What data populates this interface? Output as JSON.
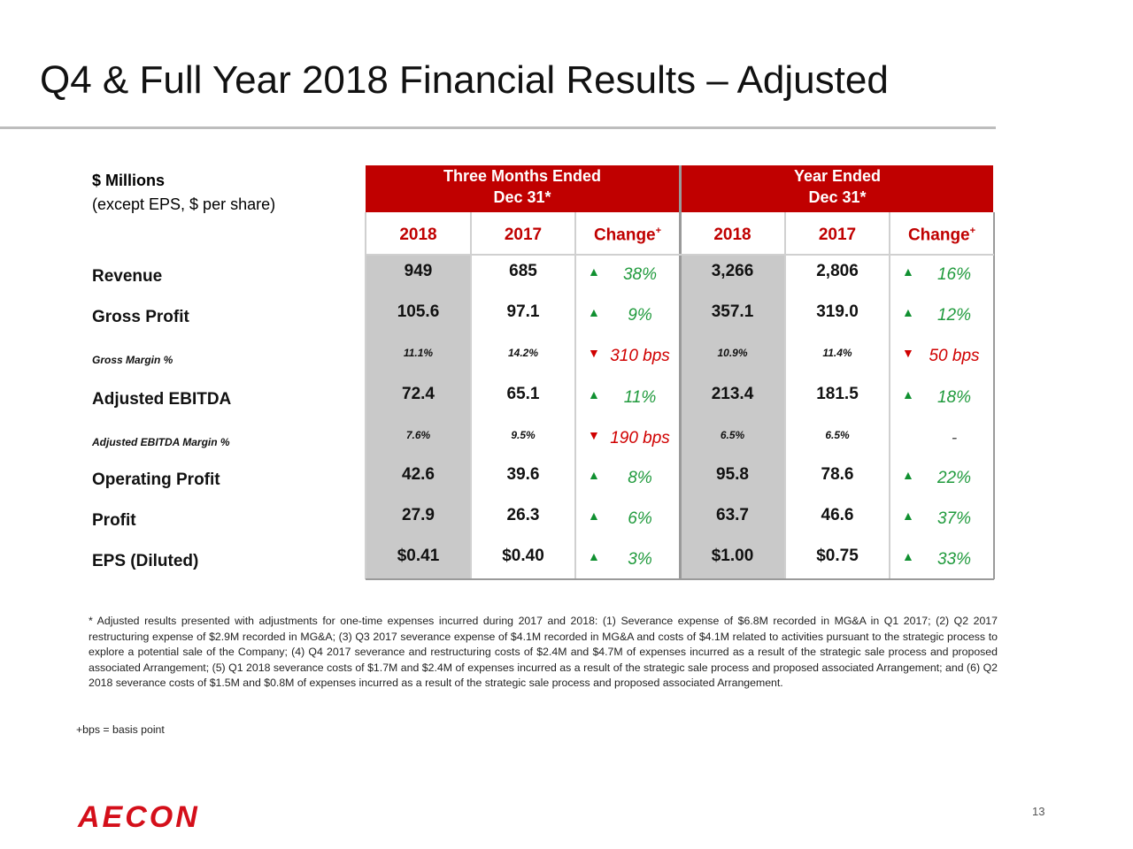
{
  "title": "Q4 & Full Year 2018 Financial Results – Adjusted",
  "table": {
    "units": [
      "$ Millions",
      "(except EPS, $ per share)"
    ],
    "groups": [
      [
        "Three Months Ended",
        "Dec 31*"
      ],
      [
        "Year Ended",
        "Dec 31*"
      ]
    ],
    "columns": [
      "2018",
      "2017",
      "Change",
      "2018",
      "2017",
      "Change"
    ],
    "change_mark": "+",
    "rows": [
      {
        "label": "Revenue",
        "style": "major",
        "values": [
          "949",
          "685",
          "38%",
          "3,266",
          "2,806",
          "16%"
        ],
        "arrows": [
          "up",
          "up"
        ]
      },
      {
        "label": "Gross Profit",
        "style": "major",
        "values": [
          "105.6",
          "97.1",
          "9%",
          "357.1",
          "319.0",
          "12%"
        ],
        "arrows": [
          "up",
          "up"
        ]
      },
      {
        "label": "Gross Margin %",
        "style": "minor",
        "values": [
          "11.1%",
          "14.2%",
          "310 bps",
          "10.9%",
          "11.4%",
          "50 bps"
        ],
        "arrows": [
          "down",
          "down"
        ]
      },
      {
        "label": "Adjusted EBITDA",
        "style": "major",
        "values": [
          "72.4",
          "65.1",
          "11%",
          "213.4",
          "181.5",
          "18%"
        ],
        "arrows": [
          "up",
          "up"
        ]
      },
      {
        "label": "Adjusted EBITDA Margin %",
        "style": "minor",
        "values": [
          "7.6%",
          "9.5%",
          "190 bps",
          "6.5%",
          "6.5%",
          "-"
        ],
        "arrows": [
          "down",
          null
        ]
      },
      {
        "label": "Operating Profit",
        "style": "major",
        "values": [
          "42.6",
          "39.6",
          "8%",
          "95.8",
          "78.6",
          "22%"
        ],
        "arrows": [
          "up",
          "up"
        ]
      },
      {
        "label": "Profit",
        "style": "major",
        "values": [
          "27.9",
          "26.3",
          "6%",
          "63.7",
          "46.6",
          "37%"
        ],
        "arrows": [
          "up",
          "up"
        ]
      },
      {
        "label": "EPS (Diluted)",
        "style": "major",
        "values": [
          "$0.41",
          "$0.40",
          "3%",
          "$1.00",
          "$0.75",
          "33%"
        ],
        "arrows": [
          "up",
          "up"
        ]
      }
    ]
  },
  "footnote": "* Adjusted results presented with adjustments for one-time expenses incurred during 2017 and 2018: (1) Severance expense of $6.8M recorded in MG&A in Q1 2017; (2) Q2 2017 restructuring expense of $2.9M recorded in MG&A; (3) Q3 2017 severance expense of $4.1M recorded in MG&A and costs of $4.1M related to activities pursuant to the strategic process to explore a potential sale of the Company; (4) Q4 2017 severance and restructuring costs of $2.4M and $4.7M of expenses incurred as a result of the strategic sale process and proposed associated Arrangement; (5) Q1 2018 severance costs of $1.7M and $2.4M of expenses incurred as a result of the strategic sale process and proposed associated Arrangement; and (6) Q2 2018 severance costs of $1.5M and $0.8M of expenses incurred as a result of the strategic sale process and proposed associated Arrangement.",
  "footnote2": "+bps = basis point",
  "page_number": "13",
  "logo": "AECON"
}
